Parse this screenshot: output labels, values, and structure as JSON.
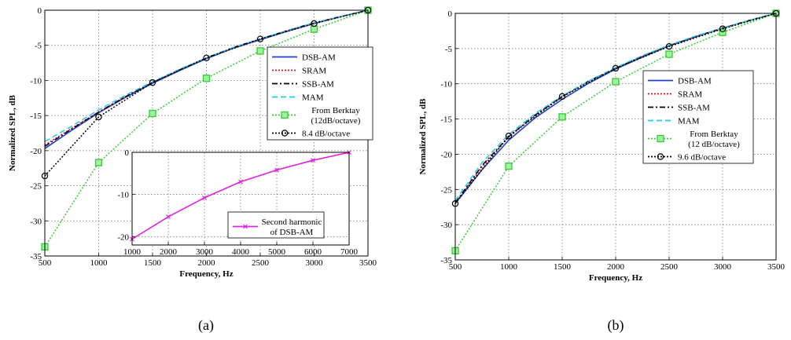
{
  "chart_data": [
    {
      "type": "line",
      "panel": "a",
      "caption": "(a)",
      "xlabel": "Frequency, Hz",
      "ylabel": "Normalized SPL, dB",
      "xlim": [
        500,
        3500
      ],
      "ylim": [
        -35,
        0
      ],
      "xticks": [
        500,
        1000,
        1500,
        2000,
        2500,
        3000,
        3500
      ],
      "yticks": [
        0,
        -5,
        -10,
        -15,
        -20,
        -25,
        -30,
        -35
      ],
      "grid": true,
      "legend_position": "right",
      "series": [
        {
          "name": "DSB-AM",
          "color": "#1f3fd0",
          "style": "solid",
          "marker": "none",
          "x": [
            500,
            750,
            1000,
            1250,
            1500,
            1750,
            2000,
            2250,
            2500,
            2750,
            3000,
            3250,
            3500
          ],
          "y": [
            -19.7,
            -17.1,
            -14.6,
            -12.4,
            -10.4,
            -8.6,
            -6.9,
            -5.4,
            -4.2,
            -3.0,
            -1.9,
            -0.9,
            0
          ]
        },
        {
          "name": "SRAM",
          "color": "#e01010",
          "style": "dotted",
          "marker": "none",
          "x": [
            500,
            750,
            1000,
            1250,
            1500,
            1750,
            2000,
            2250,
            2500,
            2750,
            3000,
            3250,
            3500
          ],
          "y": [
            -19.2,
            -16.8,
            -14.5,
            -12.3,
            -10.3,
            -8.5,
            -6.8,
            -5.3,
            -4.1,
            -2.9,
            -1.8,
            -0.9,
            0
          ]
        },
        {
          "name": "SSB-AM",
          "color": "#000000",
          "style": "dashdot",
          "marker": "none",
          "x": [
            500,
            750,
            1000,
            1250,
            1500,
            1750,
            2000,
            2250,
            2500,
            2750,
            3000,
            3250,
            3500
          ],
          "y": [
            -19.4,
            -16.9,
            -14.5,
            -12.3,
            -10.3,
            -8.5,
            -6.8,
            -5.3,
            -4.1,
            -2.9,
            -1.8,
            -0.9,
            0
          ]
        },
        {
          "name": "MAM",
          "color": "#22c8e8",
          "style": "dashed",
          "marker": "none",
          "x": [
            500,
            750,
            1000,
            1250,
            1500,
            1750,
            2000,
            2250,
            2500,
            2750,
            3000,
            3250,
            3500
          ],
          "y": [
            -18.7,
            -16.5,
            -14.2,
            -12.1,
            -10.2,
            -8.4,
            -6.8,
            -5.3,
            -4.1,
            -2.9,
            -1.8,
            -0.9,
            0
          ]
        },
        {
          "name": "From Berktay\n(12dB/octave)",
          "color": "#33cc33",
          "style": "dotted",
          "marker": "square",
          "x": [
            500,
            1000,
            1500,
            2000,
            2500,
            3000,
            3500
          ],
          "y": [
            -33.7,
            -21.7,
            -14.7,
            -9.7,
            -5.8,
            -2.7,
            0
          ]
        },
        {
          "name": "8.4 dB/octave",
          "color": "#000000",
          "style": "dotted",
          "marker": "circle",
          "x": [
            500,
            1000,
            1500,
            2000,
            2500,
            3000,
            3500
          ],
          "y": [
            -23.6,
            -15.2,
            -10.3,
            -6.8,
            -4.1,
            -1.9,
            0
          ]
        }
      ],
      "inset": {
        "type": "line",
        "xlim": [
          1000,
          7000
        ],
        "ylim": [
          -22,
          0
        ],
        "xticks": [
          1000,
          2000,
          3000,
          4000,
          5000,
          6000,
          7000
        ],
        "yticks": [
          0,
          -10,
          -20
        ],
        "grid": true,
        "series": [
          {
            "name": "Second harmonic\nof DSB-AM",
            "color": "#e020e0",
            "style": "solid",
            "marker": "x",
            "x": [
              1000,
              2000,
              3000,
              4000,
              5000,
              6000,
              7000
            ],
            "y": [
              -20.6,
              -15.3,
              -10.8,
              -7.0,
              -4.2,
              -1.9,
              0
            ]
          }
        ]
      }
    },
    {
      "type": "line",
      "panel": "b",
      "caption": "(b)",
      "xlabel": "Frequency, Hz",
      "ylabel": "Normalized SPL, dB",
      "xlim": [
        500,
        3500
      ],
      "ylim": [
        -35,
        0
      ],
      "xticks": [
        500,
        1000,
        1500,
        2000,
        2500,
        3000,
        3500
      ],
      "yticks": [
        0,
        -5,
        -10,
        -15,
        -20,
        -25,
        -30,
        -35
      ],
      "grid": true,
      "legend_position": "right",
      "series": [
        {
          "name": "DSB-AM",
          "color": "#1f3fd0",
          "style": "solid",
          "marker": "none",
          "x": [
            500,
            750,
            1000,
            1250,
            1500,
            1750,
            2000,
            2250,
            2500,
            2750,
            3000,
            3250,
            3500
          ],
          "y": [
            -27.0,
            -22.2,
            -18.0,
            -14.8,
            -12.2,
            -9.9,
            -7.9,
            -6.2,
            -4.6,
            -3.3,
            -2.1,
            -1.0,
            0
          ]
        },
        {
          "name": "SRAM",
          "color": "#e01010",
          "style": "dotted",
          "marker": "none",
          "x": [
            500,
            750,
            1000,
            1250,
            1500,
            1750,
            2000,
            2250,
            2500,
            2750,
            3000,
            3250,
            3500
          ],
          "y": [
            -27.0,
            -21.8,
            -17.6,
            -14.5,
            -11.9,
            -9.7,
            -7.8,
            -6.1,
            -4.6,
            -3.3,
            -2.1,
            -1.0,
            0
          ]
        },
        {
          "name": "SSB-AM",
          "color": "#000000",
          "style": "dashdot",
          "marker": "none",
          "x": [
            500,
            750,
            1000,
            1250,
            1500,
            1750,
            2000,
            2250,
            2500,
            2750,
            3000,
            3250,
            3500
          ],
          "y": [
            -26.9,
            -21.6,
            -17.5,
            -14.4,
            -11.8,
            -9.6,
            -7.8,
            -6.1,
            -4.6,
            -3.3,
            -2.1,
            -1.0,
            0
          ]
        },
        {
          "name": "MAM",
          "color": "#22c8e8",
          "style": "dashed",
          "marker": "none",
          "x": [
            500,
            750,
            1000,
            1250,
            1500,
            1750,
            2000,
            2250,
            2500,
            2750,
            3000,
            3250,
            3500
          ],
          "y": [
            -26.6,
            -21.2,
            -17.2,
            -14.2,
            -11.7,
            -9.6,
            -7.7,
            -6.0,
            -4.5,
            -3.2,
            -2.1,
            -1.0,
            0
          ]
        },
        {
          "name": "From Berktay\n(12 dB/octave)",
          "color": "#33cc33",
          "style": "dotted",
          "marker": "square",
          "x": [
            500,
            1000,
            1500,
            2000,
            2500,
            3000,
            3500
          ],
          "y": [
            -33.7,
            -21.7,
            -14.7,
            -9.7,
            -5.8,
            -2.7,
            0
          ]
        },
        {
          "name": "9.6 dB/octave",
          "color": "#000000",
          "style": "dotted",
          "marker": "circle",
          "x": [
            500,
            1000,
            1500,
            2000,
            2500,
            3000,
            3500
          ],
          "y": [
            -27.0,
            -17.4,
            -11.8,
            -7.8,
            -4.7,
            -2.2,
            0
          ]
        }
      ]
    }
  ]
}
